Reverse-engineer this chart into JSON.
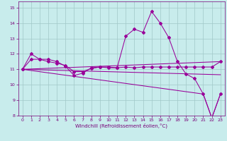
{
  "xlabel": "Windchill (Refroidissement éolien,°C)",
  "bg_color": "#c8ecec",
  "grid_color": "#a0c8c8",
  "line_color": "#990099",
  "xlim": [
    -0.5,
    23.5
  ],
  "ylim": [
    8,
    15.4
  ],
  "yticks": [
    8,
    9,
    10,
    11,
    12,
    13,
    14,
    15
  ],
  "xticks": [
    0,
    1,
    2,
    3,
    4,
    5,
    6,
    7,
    8,
    9,
    10,
    11,
    12,
    13,
    14,
    15,
    16,
    17,
    18,
    19,
    20,
    21,
    22,
    23
  ],
  "series1_x": [
    0,
    1,
    2,
    3,
    4,
    5,
    6,
    7,
    8,
    9,
    10,
    11,
    12,
    13,
    14,
    15,
    16,
    17,
    18,
    19,
    20,
    21,
    22,
    23
  ],
  "series1_y": [
    11.0,
    12.0,
    11.65,
    11.65,
    11.5,
    11.2,
    10.6,
    10.75,
    11.1,
    11.15,
    11.1,
    11.1,
    13.15,
    13.6,
    13.4,
    14.75,
    14.0,
    13.05,
    11.5,
    10.7,
    10.4,
    9.4,
    7.85,
    9.4
  ],
  "series2_x": [
    0,
    1,
    2,
    3,
    4,
    5,
    6,
    7,
    8,
    9,
    10,
    11,
    12,
    13,
    14,
    15,
    16,
    17,
    18,
    19,
    20,
    21,
    22,
    23
  ],
  "series2_y": [
    11.0,
    11.65,
    11.65,
    11.5,
    11.4,
    11.25,
    10.85,
    10.85,
    11.05,
    11.15,
    11.15,
    11.1,
    11.15,
    11.1,
    11.15,
    11.15,
    11.15,
    11.15,
    11.15,
    11.15,
    11.15,
    11.15,
    11.15,
    11.5
  ],
  "series3_x": [
    0,
    23
  ],
  "series3_y": [
    11.0,
    11.5
  ],
  "series4_x": [
    0,
    23
  ],
  "series4_y": [
    11.0,
    10.65
  ],
  "series5_x": [
    0,
    21,
    22,
    23
  ],
  "series5_y": [
    11.0,
    9.4,
    7.85,
    9.4
  ]
}
